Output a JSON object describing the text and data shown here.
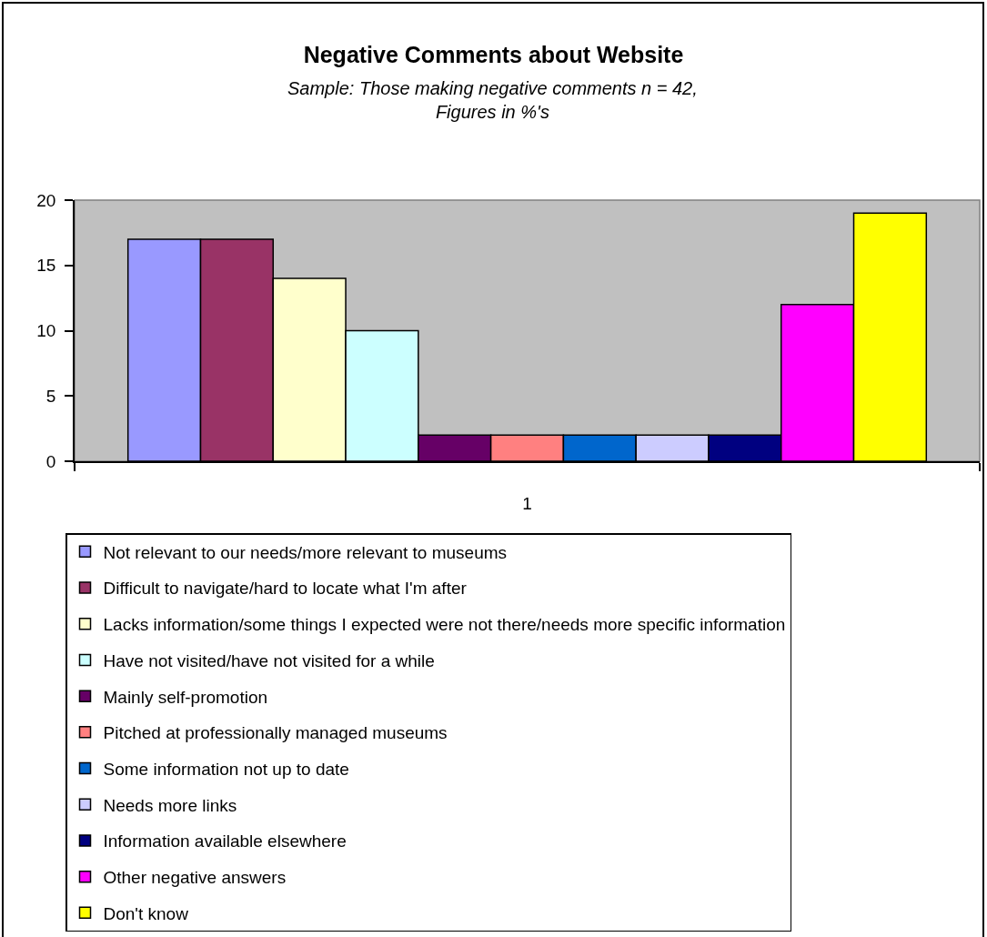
{
  "chart_data": {
    "type": "bar",
    "title": "Negative Comments about Website",
    "subtitle": "Sample: Those making negative comments n = 42,\nFigures in %'s",
    "categories": [
      "1"
    ],
    "series": [
      {
        "name": "Not relevant to our needs/more relevant to museums",
        "color": "#9999ff",
        "values": [
          17
        ]
      },
      {
        "name": "Difficult to navigate/hard to locate what I'm after",
        "color": "#993366",
        "values": [
          17
        ]
      },
      {
        "name": "Lacks information/some things I expected were not there/needs more specific information",
        "color": "#ffffcc",
        "values": [
          14
        ]
      },
      {
        "name": "Have not visited/have not visited for a while",
        "color": "#ccffff",
        "values": [
          10
        ]
      },
      {
        "name": "Mainly self-promotion",
        "color": "#660066",
        "values": [
          2
        ]
      },
      {
        "name": "Pitched at professionally managed museums",
        "color": "#ff8080",
        "values": [
          2
        ]
      },
      {
        "name": "Some information not up to date",
        "color": "#0066cc",
        "values": [
          2
        ]
      },
      {
        "name": "Needs more links",
        "color": "#ccccff",
        "values": [
          2
        ]
      },
      {
        "name": "Information available elsewhere",
        "color": "#000080",
        "values": [
          2
        ]
      },
      {
        "name": "Other negative answers",
        "color": "#ff00ff",
        "values": [
          12
        ]
      },
      {
        "name": "Don't know",
        "color": "#ffff00",
        "values": [
          19
        ]
      }
    ],
    "ylim": [
      0,
      20
    ],
    "yticks": [
      0,
      5,
      10,
      15,
      20
    ],
    "grid": false,
    "legend": "bottom"
  }
}
